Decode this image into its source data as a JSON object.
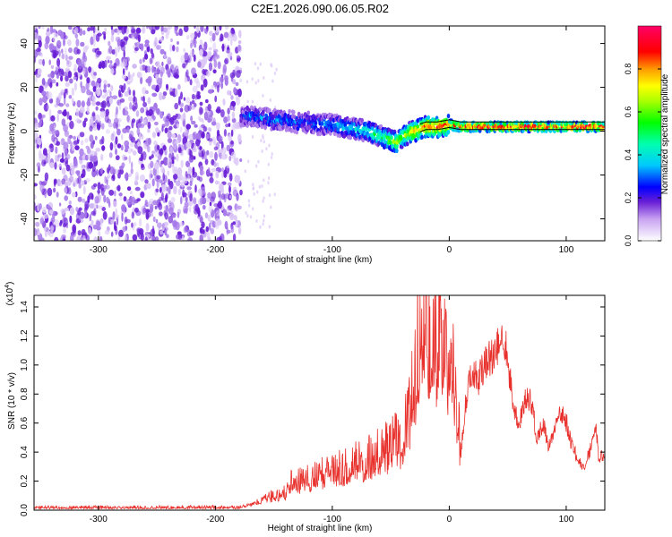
{
  "figure_title": "C2E1.2026.090.06.05.R02",
  "colors": {
    "snr_line": "#e8312c",
    "axis": "#000000",
    "background": "#ffffff",
    "noise_purple": "#6a1fd6",
    "trace_black": "#000000"
  },
  "chart_data": [
    {
      "type": "heatmap",
      "name": "spectrogram",
      "title": "C2E1.2026.090.06.05.R02",
      "xlabel": "Height of straight line (km)",
      "ylabel": "Frequency (Hz)",
      "xlim": [
        -355,
        133
      ],
      "ylim": [
        -50,
        48
      ],
      "xticks": [
        -300,
        -200,
        -100,
        0,
        100
      ],
      "yticks": [
        -40,
        -20,
        0,
        20,
        40
      ],
      "noise_region_x": [
        -355,
        -178
      ],
      "signal_track": {
        "x": [
          -178,
          -170,
          -160,
          -150,
          -140,
          -130,
          -120,
          -110,
          -100,
          -90,
          -80,
          -70,
          -60,
          -50,
          -45,
          -40,
          -35,
          -30,
          -25,
          -20,
          -10,
          0,
          10,
          20,
          40,
          60,
          80,
          100,
          120,
          133
        ],
        "freq": [
          7,
          7,
          6,
          5,
          5,
          4,
          4,
          3,
          3,
          2,
          1,
          0,
          -2,
          -4,
          -5,
          -3,
          -1,
          0,
          1,
          2,
          2,
          3,
          2,
          2,
          2,
          2,
          2,
          2,
          2,
          2
        ],
        "amplitude": [
          0.2,
          0.3,
          0.3,
          0.3,
          0.3,
          0.3,
          0.3,
          0.35,
          0.35,
          0.4,
          0.4,
          0.45,
          0.5,
          0.6,
          0.7,
          0.6,
          0.7,
          0.8,
          0.8,
          0.85,
          0.9,
          0.85,
          0.9,
          0.95,
          0.95,
          0.95,
          0.95,
          0.95,
          0.95,
          0.95
        ]
      },
      "colorbar": {
        "label": "Normalized spectral amplitude",
        "range": [
          0.0,
          1.0
        ],
        "ticks": [
          "0.0",
          "0.2",
          "0.4",
          "0.6",
          "0.8"
        ]
      }
    },
    {
      "type": "line",
      "name": "snr",
      "title": "",
      "xlabel": "Height of straight line (km)",
      "ylabel": "SNR (10 * v/v)",
      "y_multiplier": "(x10",
      "y_multiplier_exp": "4",
      "xlim": [
        -355,
        133
      ],
      "ylim": [
        0.0,
        1.48
      ],
      "xticks": [
        -300,
        -200,
        -100,
        0,
        100
      ],
      "yticks": [
        "0.0",
        "0.2",
        "0.4",
        "0.6",
        "0.8",
        "1.0",
        "1.2",
        "1.4"
      ],
      "series": [
        {
          "name": "SNR",
          "x": [
            -355,
            -300,
            -250,
            -200,
            -180,
            -165,
            -160,
            -150,
            -140,
            -135,
            -130,
            -120,
            -110,
            -100,
            -90,
            -80,
            -70,
            -60,
            -50,
            -45,
            -40,
            -35,
            -30,
            -28,
            -25,
            -22,
            -20,
            -15,
            -10,
            -5,
            0,
            5,
            10,
            15,
            20,
            25,
            30,
            35,
            40,
            45,
            48,
            52,
            55,
            60,
            65,
            70,
            75,
            80,
            85,
            90,
            95,
            100,
            105,
            110,
            115,
            120,
            125,
            128,
            133
          ],
          "values": [
            0.02,
            0.02,
            0.02,
            0.02,
            0.02,
            0.05,
            0.08,
            0.1,
            0.12,
            0.2,
            0.2,
            0.22,
            0.25,
            0.28,
            0.3,
            0.33,
            0.35,
            0.4,
            0.45,
            0.5,
            0.5,
            0.6,
            0.9,
            1.1,
            1.45,
            1.2,
            1.3,
            1.1,
            1.2,
            1.15,
            1.0,
            0.9,
            0.4,
            0.8,
            0.95,
            0.9,
            1.0,
            1.05,
            1.1,
            1.2,
            1.15,
            0.9,
            0.7,
            0.6,
            0.8,
            0.75,
            0.5,
            0.6,
            0.45,
            0.55,
            0.7,
            0.6,
            0.45,
            0.35,
            0.3,
            0.4,
            0.6,
            0.35,
            0.4
          ]
        }
      ]
    }
  ]
}
